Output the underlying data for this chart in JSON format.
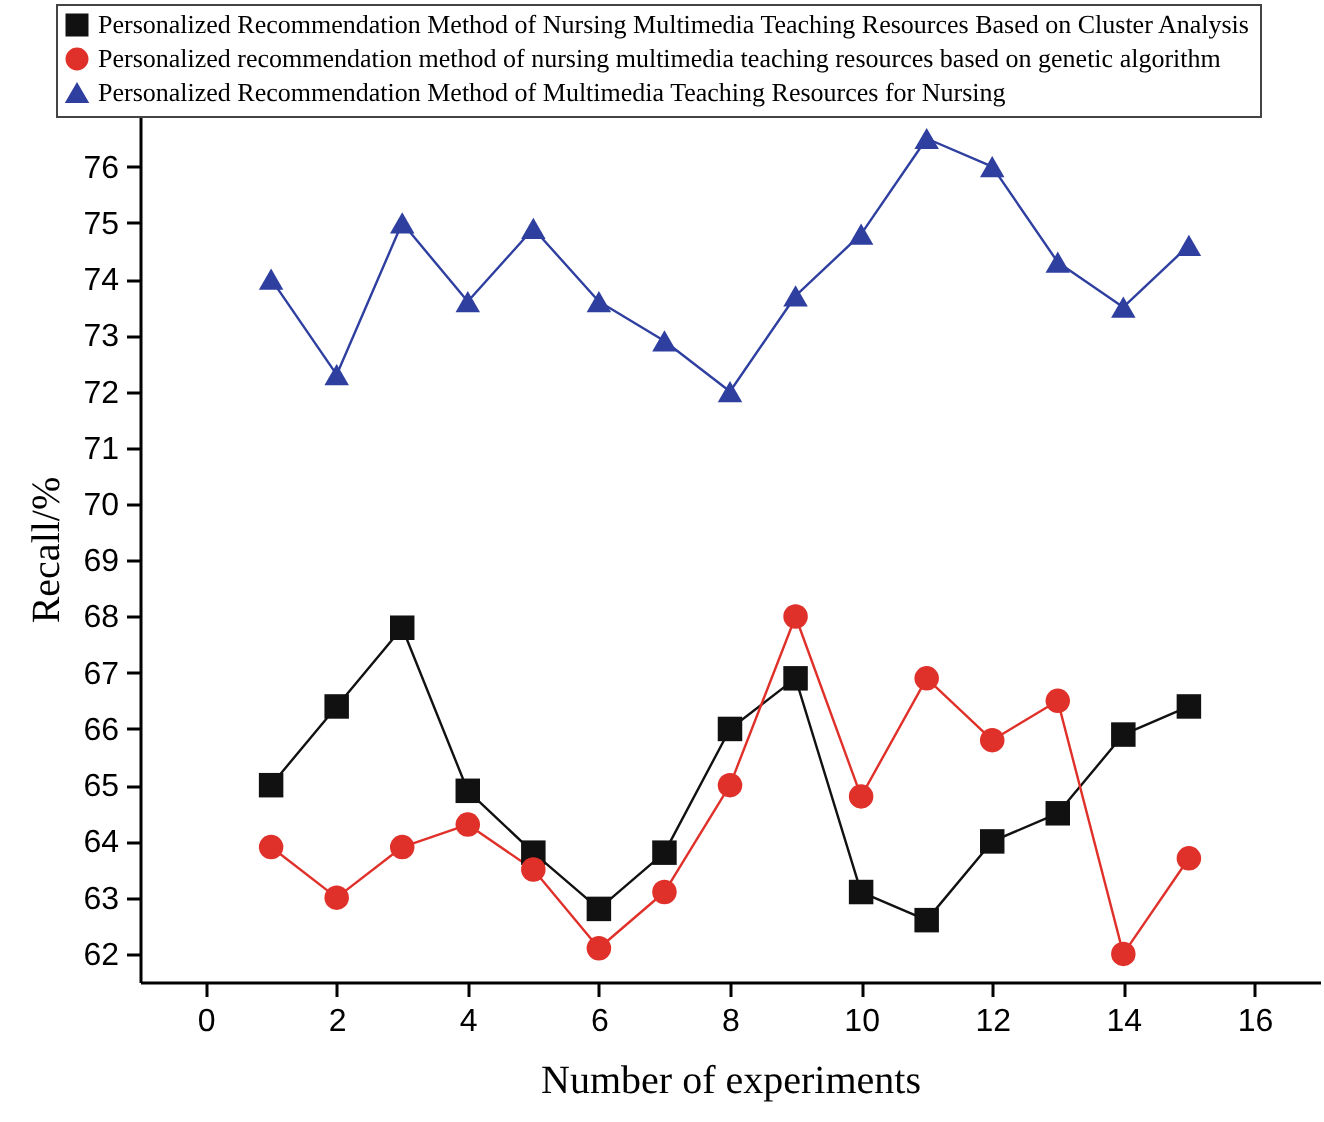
{
  "chart_data": {
    "type": "line",
    "xlabel": "Number of experiments",
    "ylabel": "Recall/%",
    "x": [
      1,
      2,
      3,
      4,
      5,
      6,
      7,
      8,
      9,
      10,
      11,
      12,
      13,
      14,
      15
    ],
    "xlim": [
      -1,
      17
    ],
    "xticks": [
      0,
      2,
      4,
      6,
      8,
      10,
      12,
      14,
      16
    ],
    "ylim": [
      61.5,
      76.9
    ],
    "yticks": [
      62,
      63,
      64,
      65,
      66,
      67,
      68,
      69,
      70,
      71,
      72,
      73,
      74,
      75,
      76
    ],
    "legend": "top",
    "line_style": "solid",
    "series": [
      {
        "name": "Personalized Recommendation Method of Nursing Multimedia Teaching Resources Based on Cluster Analysis",
        "color": "#111111",
        "marker": "square",
        "values": [
          65.0,
          66.4,
          67.8,
          64.9,
          63.8,
          62.8,
          63.8,
          66.0,
          66.9,
          63.1,
          62.6,
          64.0,
          64.5,
          65.9,
          66.4
        ]
      },
      {
        "name": "Personalized recommendation method of nursing multimedia teaching resources based on genetic algorithm",
        "color": "#e0302a",
        "marker": "circle",
        "values": [
          63.9,
          63.0,
          63.9,
          64.3,
          63.5,
          62.1,
          63.1,
          65.0,
          68.0,
          64.8,
          66.9,
          65.8,
          66.5,
          62.0,
          63.7
        ]
      },
      {
        "name": "Personalized Recommendation Method of Multimedia Teaching Resources for Nursing",
        "color": "#2e3fa0",
        "marker": "triangle",
        "values": [
          74.0,
          72.3,
          75.0,
          73.6,
          74.9,
          73.6,
          72.9,
          72.0,
          73.7,
          74.8,
          76.5,
          76.0,
          74.3,
          73.5,
          74.6
        ]
      }
    ]
  }
}
